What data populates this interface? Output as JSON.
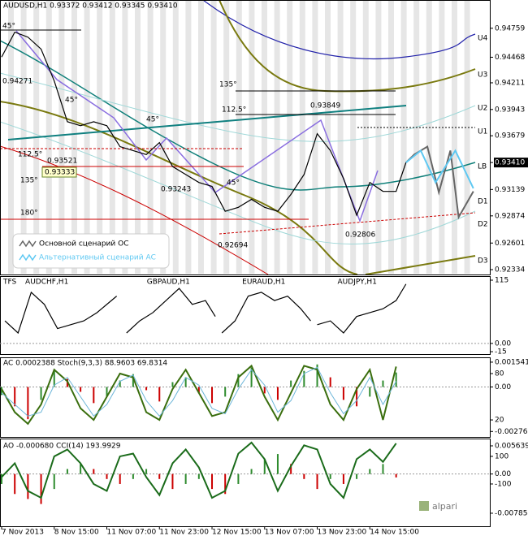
{
  "chart_data": [
    {
      "type": "line",
      "title": "AUDUSD,H1 0.93372 0.93412 0.93345 0.93410",
      "xlim": [
        0,
        148.5
      ],
      "ylim": [
        0.92285,
        0.95043
      ],
      "xticks": [
        {
          "value": 0,
          "label": "7 Nov 2013"
        },
        {
          "value": 16,
          "label": "8 Nov 15:00"
        },
        {
          "value": 32,
          "label": "11 Nov 07:00"
        },
        {
          "value": 48,
          "label": "11 Nov 23:00"
        },
        {
          "value": 64,
          "label": "12 Nov 15:00"
        },
        {
          "value": 80,
          "label": "13 Nov 07:00"
        },
        {
          "value": 96,
          "label": "13 Nov 23:00"
        },
        {
          "value": 112,
          "label": "14 Nov 15:00"
        }
      ],
      "yticks": [
        0.94759,
        0.94468,
        0.94211,
        0.93943,
        0.93679,
        {
          "value": 0.9341,
          "label": "0.93410"
        },
        0.93139,
        0.92874,
        0.92601,
        0.92334
      ],
      "levels": [
        "U4",
        "U3",
        "U2",
        "U1",
        "LB",
        "D1",
        "D2",
        "D3"
      ],
      "annotations": [
        "45°",
        "0.94271",
        "45°",
        "45°",
        "135°",
        "112.5°",
        "0.93849",
        "112.5°",
        "0.93521",
        "0.93333",
        "135°",
        "0.93243",
        "45°",
        "180°",
        "0.92694",
        "0.92806"
      ],
      "series": [
        {
          "color": "#000000",
          "x": [
            0,
            4,
            8,
            12,
            16,
            20,
            24,
            28,
            32,
            36,
            40,
            44,
            48,
            52,
            56,
            60,
            64,
            68,
            72,
            76,
            80,
            84,
            88,
            92,
            96,
            100,
            104,
            108,
            112,
            116,
            120,
            123
          ],
          "values": [
            0.9447,
            0.9472,
            0.9467,
            0.9455,
            0.9423,
            0.9382,
            0.9378,
            0.9382,
            0.9378,
            0.9357,
            0.9353,
            0.9349,
            0.9361,
            0.9337,
            0.9329,
            0.9321,
            0.9317,
            0.9292,
            0.9296,
            0.9304,
            0.9296,
            0.9292,
            0.9309,
            0.9329,
            0.937,
            0.9353,
            0.9325,
            0.9288,
            0.9321,
            0.9312,
            0.9312,
            0.9341
          ]
        },
        {
          "name": "Основной сценарий ОС",
          "color": "#666666",
          "x": [
            123,
            125.5,
            129.5,
            133,
            136.5,
            139,
            143.5
          ],
          "values": [
            0.9341,
            0.9349,
            0.9357,
            0.9311,
            0.9353,
            0.9286,
            0.9312
          ]
        },
        {
          "name": "Альтернативный сценарий АС",
          "color": "#5ec8f2",
          "x": [
            123,
            127.5,
            132,
            138,
            143.5
          ],
          "values": [
            0.9341,
            0.9353,
            0.9321,
            0.9353,
            0.9315
          ]
        }
      ]
    },
    {
      "type": "line",
      "title": "TFS",
      "xlim": [
        0,
        148.5
      ],
      "ylim": [
        -19.4,
        122.4
      ],
      "yticks": [
        115,
        {
          "value": 0,
          "label": "0.00"
        },
        -15
      ],
      "series": [
        {
          "name": "AUDCHF,H1",
          "color": "#000000",
          "x": [
            1,
            5,
            9,
            13,
            17,
            21,
            25,
            29,
            35
          ],
          "values": [
            41,
            19,
            93,
            71,
            27,
            34,
            41,
            56,
            86
          ]
        },
        {
          "name": "GBPAUD,H1",
          "color": "#000000",
          "x": [
            38,
            42,
            46,
            50,
            54,
            58,
            62,
            65
          ],
          "values": [
            19,
            41,
            56,
            78,
            100,
            71,
            78,
            49
          ]
        },
        {
          "name": "EURAUD,H1",
          "color": "#000000",
          "x": [
            67,
            71,
            75,
            79,
            83,
            87,
            91,
            94
          ],
          "values": [
            19,
            41,
            86,
            93,
            78,
            86,
            63,
            41
          ]
        },
        {
          "name": "AUDJPY,H1",
          "color": "#000000",
          "x": [
            96,
            100,
            104,
            108,
            112,
            116,
            120,
            123
          ],
          "values": [
            34,
            41,
            19,
            49,
            56,
            63,
            78,
            108
          ]
        }
      ]
    },
    {
      "type": "bar",
      "title": "AC 0.0002388 Stoch(9,3,3) 88.9603 69.8314",
      "xlim": [
        0,
        148.5
      ],
      "ylim": [
        -0.0031,
        0.00184
      ],
      "y2lim": [
        -2,
        101
      ],
      "yticks": [
        0.001541,
        {
          "value": 0,
          "label": "0.00"
        },
        -0.002762
      ],
      "y2ticks": [
        80,
        20
      ],
      "x": [
        0,
        4,
        8,
        12,
        16,
        20,
        24,
        28,
        32,
        36,
        40,
        44,
        48,
        52,
        56,
        60,
        64,
        68,
        72,
        76,
        80,
        84,
        88,
        92,
        96,
        100,
        104,
        108,
        112,
        116,
        120
      ],
      "values": [
        -0.0005,
        -0.0012,
        -0.002,
        -0.0008,
        0.001,
        0.0005,
        -0.0003,
        -0.001,
        -0.0006,
        0.0004,
        0.0008,
        -0.0002,
        -0.0009,
        0.0003,
        0.0006,
        -0.0004,
        -0.001,
        -0.0006,
        0.0008,
        0.0012,
        -0.0004,
        -0.0008,
        0.0004,
        0.001,
        0.0014,
        0.0006,
        -0.0008,
        -0.0012,
        -0.0006,
        0.0004,
        0.0009
      ],
      "series": [
        {
          "color": "#3a6e0e",
          "axis": "y2",
          "values": [
            60,
            30,
            15,
            40,
            85,
            70,
            35,
            20,
            50,
            80,
            75,
            30,
            20,
            60,
            85,
            55,
            25,
            30,
            75,
            90,
            50,
            20,
            55,
            90,
            85,
            40,
            20,
            60,
            85,
            20,
            89
          ]
        },
        {
          "color": "#6db6d9",
          "axis": "y2",
          "values": [
            55,
            40,
            25,
            30,
            65,
            75,
            50,
            25,
            40,
            70,
            78,
            45,
            25,
            45,
            75,
            65,
            35,
            28,
            60,
            85,
            65,
            30,
            45,
            80,
            88,
            55,
            28,
            45,
            75,
            40,
            70
          ]
        }
      ]
    },
    {
      "type": "bar",
      "title": "AO -0.000680 CCI(14) 193.9929",
      "xlim": [
        0,
        148.5
      ],
      "ylim": [
        -0.01046,
        0.0071
      ],
      "y2lim": [
        -406,
        229
      ],
      "yticks": [
        0.005639,
        {
          "value": 0,
          "label": "0.00"
        },
        -0.007854
      ],
      "y2ticks": [
        100,
        -100
      ],
      "x": [
        0,
        4,
        8,
        12,
        16,
        20,
        24,
        28,
        32,
        36,
        40,
        44,
        48,
        52,
        56,
        60,
        64,
        68,
        72,
        76,
        80,
        84,
        88,
        92,
        96,
        100,
        104,
        108,
        112,
        116,
        120
      ],
      "values": [
        -0.002,
        -0.004,
        -0.005,
        -0.006,
        -0.003,
        0.001,
        0.002,
        0.001,
        -0.001,
        -0.002,
        -0.001,
        0.001,
        -0.001,
        -0.003,
        -0.002,
        -0.001,
        -0.003,
        -0.004,
        -0.002,
        0.001,
        0.003,
        0.004,
        0.002,
        -0.001,
        -0.003,
        -0.001,
        -0.002,
        -0.001,
        0.001,
        0.002,
        -0.00068
      ],
      "series": [
        {
          "color": "#1a6b1a",
          "axis": "y2",
          "values": [
            -50,
            50,
            -150,
            -200,
            100,
            150,
            50,
            -100,
            -150,
            100,
            120,
            -50,
            -180,
            50,
            150,
            20,
            -200,
            -150,
            120,
            200,
            80,
            -150,
            30,
            180,
            150,
            -100,
            -200,
            80,
            150,
            60,
            194
          ]
        }
      ]
    }
  ]
}
